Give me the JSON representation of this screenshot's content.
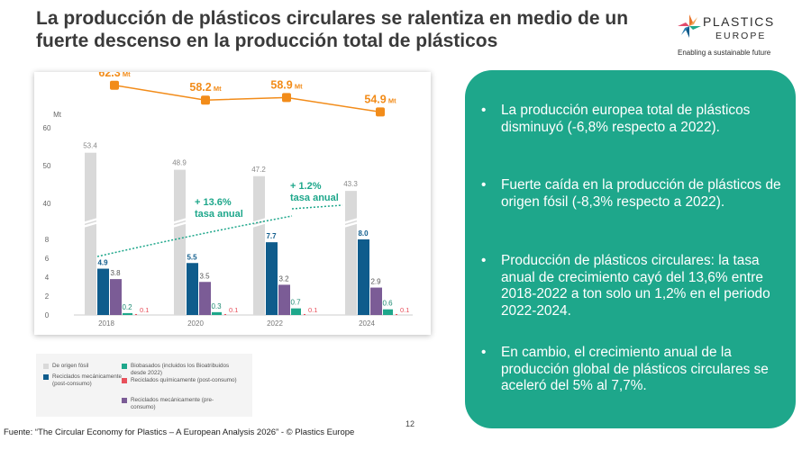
{
  "title": "La producción de plásticos circulares se ralentiza en medio de un fuerte descenso en la producción total de plásticos",
  "logo": {
    "word1": "PLASTICS",
    "word2": "EUROPE",
    "tagline": "Enabling a sustainable future",
    "colors": [
      "#e8742b",
      "#1ea78b",
      "#0f5c8c",
      "#e14a6c"
    ]
  },
  "chart_data": {
    "type": "bar",
    "ylabel": "Mt",
    "ylim": [
      0,
      60
    ],
    "y_ticks": [
      "0",
      "2",
      "4",
      "6",
      "8",
      "40",
      "50",
      "60"
    ],
    "categories": [
      "2018",
      "2020",
      "2022",
      "2024"
    ],
    "series": [
      {
        "name": "De origen fósil",
        "color": "#d9d9d9",
        "values": [
          53.4,
          48.9,
          47.2,
          43.3
        ],
        "labels": [
          "53.4",
          "48.9",
          "47.2",
          "43.3"
        ]
      },
      {
        "name": "Reciclados mecánicamente (post-consumo)",
        "color": "#0f5c8c",
        "values": [
          4.9,
          5.5,
          7.7,
          8.0
        ],
        "labels": [
          "4.9",
          "5.5",
          "7.7",
          "8.0"
        ]
      },
      {
        "name": "Reciclados mecánicamente (pre-consumo)",
        "color": "#7b5c96",
        "values": [
          3.8,
          3.5,
          3.2,
          2.9
        ],
        "labels": [
          "3.8",
          "3.5",
          "3.2",
          "2.9"
        ]
      },
      {
        "name": "Biobasados (incluidos los Bioatribuidos desde 2022)",
        "color": "#1ea78b",
        "values": [
          0.2,
          0.3,
          0.7,
          0.6
        ],
        "labels": [
          "0.2",
          "0.3",
          "0.7",
          "0.6"
        ]
      },
      {
        "name": "Reciclados químicamente (post-consumo)",
        "color": "#e8505b",
        "values": [
          0.1,
          0.1,
          0.1,
          0.1
        ],
        "labels": [
          "0.1",
          "0.1",
          "0.1",
          "0.1"
        ]
      }
    ],
    "total_line": {
      "color": "#f28c1a",
      "values": [
        62.3,
        58.2,
        58.9,
        54.9
      ],
      "labels": [
        "62.3",
        "58.2",
        "58.9",
        "54.9"
      ],
      "unit": "Mt"
    },
    "annotations": [
      {
        "text_line1": "+ 13.6%",
        "text_line2": "tasa anual"
      },
      {
        "text_line1": "+ 1.2%",
        "text_line2": "tasa anual"
      }
    ],
    "trend_color": "#1ea78b",
    "grid": false,
    "legend": "bottom-left"
  },
  "bullets": [
    "La producción europea total de plásticos disminuyó (-6,8% respecto a 2022).",
    "Fuerte caída en la producción de plásticos de origen fósil (-8,3% respecto a 2022).",
    "Producción de plásticos circulares: la tasa anual de crecimiento cayó del 13,6% entre 2018-2022 a ton solo un 1,2% en el periodo 2022-2024.",
    "En cambio, el crecimiento anual de la producción global de plásticos circulares se aceleró del 5% al 7,7%."
  ],
  "bullet_symbol": "•",
  "page_number": "12",
  "source": "Fuente: “The Circular Economy for Plastics – A European Analysis 2026” - © Plastics Europe",
  "colors": {
    "panel": "#1ea78b",
    "title": "#3a3a3a"
  }
}
